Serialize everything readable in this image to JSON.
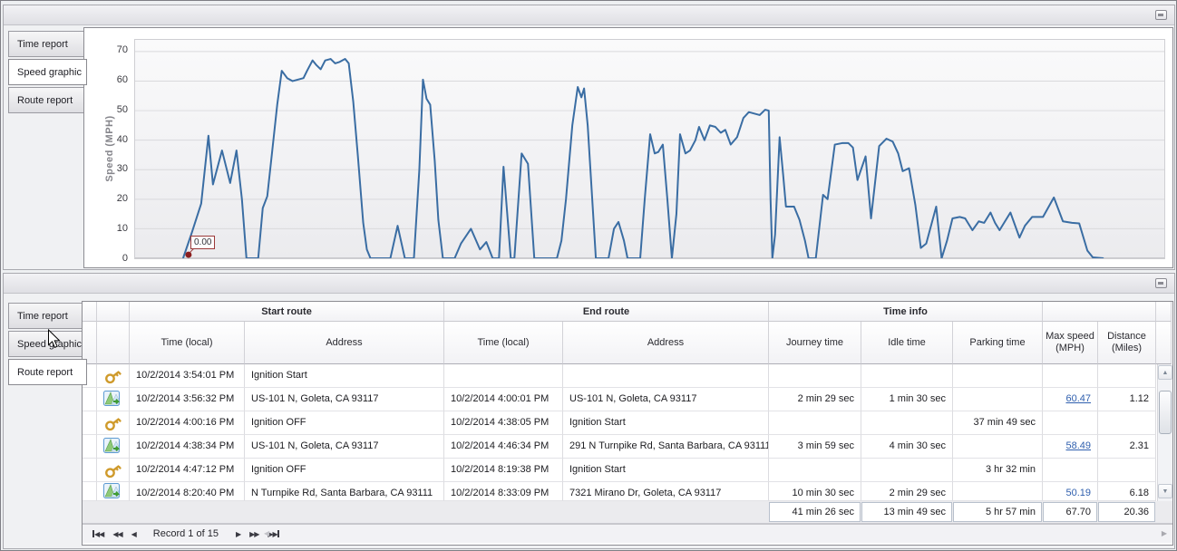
{
  "tabs": [
    "Time report",
    "Speed graphic",
    "Route report"
  ],
  "top_panel": {
    "selected_tab": "Speed graphic"
  },
  "bottom_panel": {
    "selected_tab": "Route report"
  },
  "chart_data": {
    "type": "line",
    "title": "",
    "xlabel": "",
    "ylabel": "Speed (MPH)",
    "yticks": [
      0,
      10,
      20,
      30,
      40,
      50,
      60,
      70
    ],
    "ylim": [
      0,
      74
    ],
    "grid": true,
    "legend": false,
    "line_color": "#3a6da3",
    "marker_color": "#8b1f1f",
    "annotation": {
      "text": "0.00"
    },
    "x_unit": "screen-px",
    "points": [
      [
        198,
        0
      ],
      [
        208,
        9
      ],
      [
        218,
        18.5
      ],
      [
        226,
        41.5
      ],
      [
        231,
        25
      ],
      [
        241,
        36.5
      ],
      [
        250,
        25.5
      ],
      [
        257,
        36.5
      ],
      [
        263,
        20
      ],
      [
        268,
        0
      ],
      [
        281,
        0
      ],
      [
        286,
        17
      ],
      [
        291,
        21
      ],
      [
        296,
        35
      ],
      [
        302,
        52
      ],
      [
        307,
        63.5
      ],
      [
        313,
        61
      ],
      [
        319,
        60
      ],
      [
        325,
        60.5
      ],
      [
        331,
        61
      ],
      [
        335,
        63.5
      ],
      [
        341,
        67
      ],
      [
        345,
        65.5
      ],
      [
        350,
        64
      ],
      [
        355,
        67
      ],
      [
        361,
        67.5
      ],
      [
        366,
        66
      ],
      [
        371,
        66.5
      ],
      [
        377,
        67.5
      ],
      [
        381,
        66
      ],
      [
        386,
        53
      ],
      [
        391,
        35
      ],
      [
        397,
        12
      ],
      [
        401,
        3
      ],
      [
        405,
        0
      ],
      [
        427,
        0
      ],
      [
        435,
        11
      ],
      [
        443,
        0
      ],
      [
        453,
        0
      ],
      [
        459,
        30
      ],
      [
        463,
        60.5
      ],
      [
        467,
        54
      ],
      [
        471,
        52
      ],
      [
        476,
        33
      ],
      [
        480,
        13
      ],
      [
        485,
        0
      ],
      [
        498,
        0
      ],
      [
        505,
        5
      ],
      [
        516,
        10
      ],
      [
        526,
        3
      ],
      [
        533,
        5.5
      ],
      [
        540,
        0
      ],
      [
        547,
        0
      ],
      [
        552,
        31
      ],
      [
        560,
        0
      ],
      [
        564,
        0
      ],
      [
        572,
        35.5
      ],
      [
        579,
        32
      ],
      [
        586,
        0
      ],
      [
        611,
        0
      ],
      [
        616,
        6
      ],
      [
        621,
        20
      ],
      [
        628,
        45
      ],
      [
        634,
        58
      ],
      [
        638,
        54.5
      ],
      [
        641,
        57.5
      ],
      [
        645,
        45
      ],
      [
        650,
        20
      ],
      [
        654,
        0
      ],
      [
        668,
        0
      ],
      [
        674,
        10
      ],
      [
        679,
        12.3
      ],
      [
        685,
        6
      ],
      [
        689,
        0
      ],
      [
        703,
        0
      ],
      [
        708,
        20
      ],
      [
        714,
        42
      ],
      [
        719,
        35.5
      ],
      [
        723,
        36
      ],
      [
        728,
        38.5
      ],
      [
        733,
        20
      ],
      [
        738,
        0
      ],
      [
        743,
        15
      ],
      [
        747,
        42
      ],
      [
        753,
        35.5
      ],
      [
        758,
        36.5
      ],
      [
        764,
        40
      ],
      [
        768,
        44.5
      ],
      [
        774,
        40
      ],
      [
        780,
        45
      ],
      [
        786,
        44.5
      ],
      [
        792,
        42.5
      ],
      [
        797,
        43.5
      ],
      [
        803,
        38.5
      ],
      [
        810,
        41
      ],
      [
        817,
        47.5
      ],
      [
        823,
        49.5
      ],
      [
        829,
        49
      ],
      [
        835,
        48.5
      ],
      [
        841,
        50.3
      ],
      [
        845,
        50
      ],
      [
        847,
        20
      ],
      [
        849,
        0
      ],
      [
        852,
        8
      ],
      [
        857,
        41
      ],
      [
        861,
        28
      ],
      [
        864,
        17.5
      ],
      [
        873,
        17.5
      ],
      [
        879,
        13
      ],
      [
        885,
        6
      ],
      [
        889,
        0
      ],
      [
        897,
        0
      ],
      [
        905,
        21.5
      ],
      [
        910,
        20
      ],
      [
        918,
        38.5
      ],
      [
        926,
        39
      ],
      [
        933,
        39
      ],
      [
        938,
        37.5
      ],
      [
        943,
        26.5
      ],
      [
        952,
        34.5
      ],
      [
        958,
        13.5
      ],
      [
        967,
        38
      ],
      [
        975,
        40.5
      ],
      [
        982,
        39.5
      ],
      [
        988,
        35.5
      ],
      [
        993,
        29.5
      ],
      [
        1000,
        30.5
      ],
      [
        1007,
        18
      ],
      [
        1013,
        3.5
      ],
      [
        1019,
        5
      ],
      [
        1030,
        17.5
      ],
      [
        1036,
        0
      ],
      [
        1042,
        6
      ],
      [
        1048,
        13.5
      ],
      [
        1056,
        14
      ],
      [
        1062,
        13.5
      ],
      [
        1070,
        9.5
      ],
      [
        1077,
        12.5
      ],
      [
        1083,
        12
      ],
      [
        1090,
        15.5
      ],
      [
        1095,
        12
      ],
      [
        1100,
        9.5
      ],
      [
        1105,
        12
      ],
      [
        1112,
        15.5
      ],
      [
        1122,
        7
      ],
      [
        1128,
        11
      ],
      [
        1136,
        14
      ],
      [
        1148,
        14
      ],
      [
        1160,
        20.6
      ],
      [
        1170,
        12.5
      ],
      [
        1180,
        12
      ],
      [
        1188,
        11.8
      ],
      [
        1197,
        2.6
      ],
      [
        1203,
        0.3
      ],
      [
        1215,
        0
      ]
    ]
  },
  "table": {
    "groups": [
      "Start route",
      "End route",
      "Time info"
    ],
    "columns": [
      "Time (local)",
      "Address",
      "Time (local)",
      "Address",
      "Journey time",
      "Idle time",
      "Parking time",
      "Max speed (MPH)",
      "Distance (Miles)"
    ],
    "rows": [
      {
        "icon": "key",
        "start_time": "10/2/2014 3:54:01 PM",
        "start_address": "Ignition Start",
        "end_time": "",
        "end_address": "",
        "journey": "",
        "idle": "",
        "parking": "",
        "max_speed": "",
        "max_style": "",
        "distance": ""
      },
      {
        "icon": "route",
        "start_time": "10/2/2014 3:56:32 PM",
        "start_address": "US-101 N, Goleta, CA 93117",
        "end_time": "10/2/2014 4:00:01 PM",
        "end_address": "US-101 N, Goleta, CA 93117",
        "journey": "2 min 29 sec",
        "idle": "1 min 30 sec",
        "parking": "",
        "max_speed": "60.47",
        "max_style": "link",
        "distance": "1.12"
      },
      {
        "icon": "key",
        "start_time": "10/2/2014 4:00:16 PM",
        "start_address": "Ignition OFF",
        "end_time": "10/2/2014 4:38:05 PM",
        "end_address": "Ignition Start",
        "journey": "",
        "idle": "",
        "parking": "37 min 49 sec",
        "max_speed": "",
        "max_style": "",
        "distance": ""
      },
      {
        "icon": "route",
        "start_time": "10/2/2014 4:38:34 PM",
        "start_address": "US-101 N, Goleta, CA 93117",
        "end_time": "10/2/2014 4:46:34 PM",
        "end_address": "291 N Turnpike Rd, Santa Barbara, CA 93111",
        "journey": "3 min 59 sec",
        "idle": "4 min 30 sec",
        "parking": "",
        "max_speed": "58.49",
        "max_style": "link",
        "distance": "2.31"
      },
      {
        "icon": "key",
        "start_time": "10/2/2014 4:47:12 PM",
        "start_address": "Ignition OFF",
        "end_time": "10/2/2014 8:19:38 PM",
        "end_address": "Ignition Start",
        "journey": "",
        "idle": "",
        "parking": "3 hr 32 min",
        "max_speed": "",
        "max_style": "",
        "distance": ""
      },
      {
        "icon": "route",
        "start_time": "10/2/2014 8:20:40 PM",
        "start_address": "N Turnpike Rd, Santa Barbara, CA 93111",
        "end_time": "10/2/2014 8:33:09 PM",
        "end_address": "7321 Mirano Dr, Goleta, CA 93117",
        "journey": "10 min 30 sec",
        "idle": "2 min 29 sec",
        "parking": "",
        "max_speed": "50.19",
        "max_style": "plain-blue",
        "distance": "6.18",
        "clipped": true
      }
    ],
    "summary": {
      "journey": "41 min 26 sec",
      "idle": "13 min 49 sec",
      "parking": "5 hr 57 min",
      "max_speed": "67.70",
      "distance": "20.36"
    }
  },
  "nav": {
    "record_label": "Record 1 of 15",
    "icons": {
      "prev_page": "◀◀",
      "prev": "◀",
      "next": "▶",
      "next_page": "▶▶",
      "scroll_up": "▲",
      "scroll_down": "▼",
      "scroll_left": "◀",
      "scroll_right": "▶"
    }
  }
}
